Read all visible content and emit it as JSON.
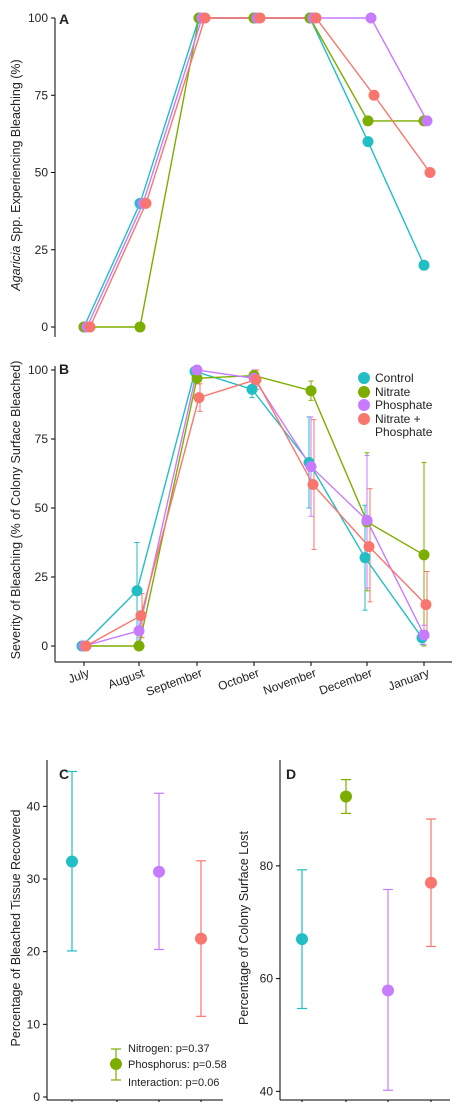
{
  "colors": {
    "Control": "#21BEC6",
    "Nitrate": "#7CAE00",
    "Phosphate": "#C77CFF",
    "NitratePhosphate": "#F8766D"
  },
  "chart_data": [
    {
      "panel": "A",
      "type": "line",
      "ylabel_italic": "Agaricia",
      "ylabel_rest": " Spp. Experiencing Bleaching (%)",
      "ylim": [
        0,
        100
      ],
      "yticks": [
        0,
        25,
        50,
        75,
        100
      ],
      "categories": [
        "July",
        "August",
        "September",
        "October",
        "November",
        "December",
        "January"
      ],
      "series": [
        {
          "key": "Control",
          "values": [
            0,
            40,
            100,
            100,
            100,
            60,
            20
          ]
        },
        {
          "key": "Nitrate",
          "values": [
            0,
            0,
            100,
            100,
            100,
            66.7,
            66.7
          ]
        },
        {
          "key": "Phosphate",
          "values": [
            0,
            40,
            100,
            100,
            100,
            100,
            66.7
          ]
        },
        {
          "key": "NitratePhosphate",
          "values": [
            0,
            40,
            100,
            100,
            100,
            75,
            50
          ]
        }
      ]
    },
    {
      "panel": "B",
      "type": "line",
      "ylabel": "Severity of Bleaching (% of Colony Surface Bleached)",
      "ylim": [
        0,
        100
      ],
      "yticks": [
        0,
        25,
        50,
        75,
        100
      ],
      "categories": [
        "July",
        "August",
        "September",
        "October",
        "November",
        "December",
        "January"
      ],
      "legend": [
        {
          "key": "Control",
          "label": "Control"
        },
        {
          "key": "Nitrate",
          "label": "Nitrate"
        },
        {
          "key": "Phosphate",
          "label": "Phosphate"
        },
        {
          "key": "NitratePhosphate",
          "label_lines": [
            "Nitrate +",
            "Phosphate"
          ]
        }
      ],
      "series": [
        {
          "key": "Control",
          "values": [
            0,
            20,
            99.5,
            93,
            66.5,
            32,
            3
          ],
          "errors": [
            [
              0,
              0
            ],
            [
              0,
              37.5
            ],
            [
              97,
              100
            ],
            [
              90,
              96
            ],
            [
              50,
              83
            ],
            [
              13,
              51
            ],
            [
              0.5,
              5.5
            ]
          ]
        },
        {
          "key": "Nitrate",
          "values": [
            0,
            0,
            97,
            98,
            92.5,
            45,
            33
          ],
          "errors": [
            [
              0,
              0
            ],
            [
              0,
              0
            ],
            [
              95,
              99
            ],
            [
              97,
              99
            ],
            [
              89,
              96
            ],
            [
              20,
              70
            ],
            [
              0,
              66.5
            ]
          ]
        },
        {
          "key": "Phosphate",
          "values": [
            0,
            5.5,
            100,
            97,
            65,
            45.5,
            4
          ],
          "errors": [
            [
              0,
              0
            ],
            [
              0,
              12
            ],
            [
              100,
              100
            ],
            [
              94,
              100
            ],
            [
              47,
              83
            ],
            [
              21,
              69
            ],
            [
              0.5,
              7.5
            ]
          ]
        },
        {
          "key": "NitratePhosphate",
          "values": [
            0,
            11,
            90,
            96.5,
            58.5,
            36,
            15
          ],
          "errors": [
            [
              0,
              0
            ],
            [
              3,
              19
            ],
            [
              85,
              95
            ],
            [
              93,
              100
            ],
            [
              35,
              82
            ],
            [
              16,
              57
            ],
            [
              3,
              27
            ]
          ]
        }
      ]
    },
    {
      "panel": "C",
      "type": "scatter",
      "ylabel": "Percentage of Bleached Tissue Recovered",
      "ylim": [
        0,
        45
      ],
      "yticks": [
        0,
        10,
        20,
        30,
        40
      ],
      "annotation": [
        "Nitrogen: p=0.37",
        "Phosphorus: p=0.58",
        "Interaction: p=0.06"
      ],
      "series": [
        {
          "key": "Control",
          "value": 32.4,
          "error": [
            20.1,
            44.8
          ]
        },
        {
          "key": "Phosphate",
          "value": 31,
          "error": [
            20.3,
            41.8
          ]
        },
        {
          "key": "NitratePhosphate",
          "value": 21.8,
          "error": [
            11.1,
            32.5
          ]
        }
      ]
    },
    {
      "panel": "D",
      "type": "scatter",
      "ylabel": "Percentage of Colony Surface Lost",
      "ylim": [
        39,
        97
      ],
      "yticks": [
        40,
        60,
        80
      ],
      "series": [
        {
          "key": "Control",
          "value": 67,
          "error": [
            54.7,
            79.3
          ]
        },
        {
          "key": "Nitrate",
          "value": 92.3,
          "error": [
            89.3,
            95.3
          ]
        },
        {
          "key": "Phosphate",
          "value": 57.9,
          "error": [
            40.2,
            75.8
          ]
        },
        {
          "key": "NitratePhosphate",
          "value": 77,
          "error": [
            65.7,
            88.3
          ]
        }
      ]
    }
  ]
}
